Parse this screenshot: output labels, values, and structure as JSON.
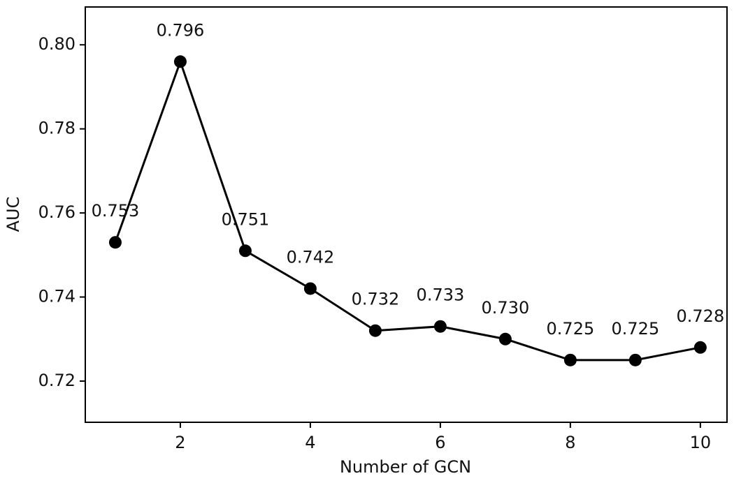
{
  "chart_data": {
    "type": "line",
    "xlabel": "Number of GCN",
    "ylabel": "AUC",
    "x": [
      1,
      2,
      3,
      4,
      5,
      6,
      7,
      8,
      9,
      10
    ],
    "values": [
      0.753,
      0.796,
      0.751,
      0.742,
      0.732,
      0.733,
      0.73,
      0.725,
      0.725,
      0.728
    ],
    "value_labels": [
      "0.753",
      "0.796",
      "0.751",
      "0.742",
      "0.732",
      "0.733",
      "0.730",
      "0.725",
      "0.725",
      "0.728"
    ],
    "color": "#000000",
    "xlim": [
      0.538,
      10.41
    ],
    "xticks": [
      2,
      4,
      6,
      8,
      10
    ],
    "ylim": [
      0.7102,
      0.809
    ],
    "yticks": [
      0.72,
      0.74,
      0.76,
      0.78,
      {
        "value": 0.8,
        "label": "0.80"
      }
    ],
    "grid": false
  }
}
